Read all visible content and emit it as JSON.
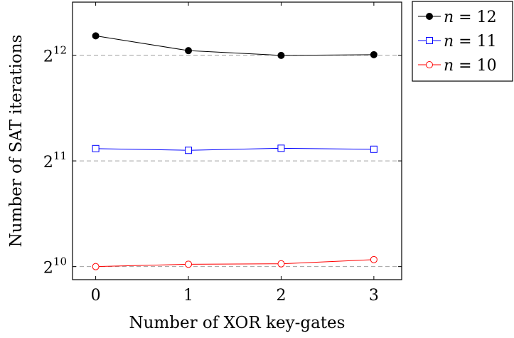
{
  "chart_data": {
    "type": "line",
    "title": "",
    "xlabel": "Number of XOR key-gates",
    "ylabel": "Number of SAT iterations",
    "x": [
      0,
      1,
      2,
      3
    ],
    "xticks": [
      "0",
      "1",
      "2",
      "3"
    ],
    "xlim": [
      -0.25,
      3.3
    ],
    "ylog_base": 2,
    "ylim": [
      940,
      5800
    ],
    "yticks": [
      {
        "value": 1024,
        "base": "2",
        "exp": "10"
      },
      {
        "value": 2048,
        "base": "2",
        "exp": "11"
      },
      {
        "value": 4096,
        "base": "2",
        "exp": "12"
      }
    ],
    "grid": "horizontal dashed at major ticks",
    "legend_position": "outside-right-top",
    "series": [
      {
        "name": "n = 12",
        "var": "n",
        "value_label": "12",
        "color": "#000000",
        "marker": "filled-circle",
        "values": [
          4650,
          4220,
          4090,
          4110
        ]
      },
      {
        "name": "n = 11",
        "var": "n",
        "value_label": "11",
        "color": "#0000ff",
        "marker": "open-square",
        "values": [
          2220,
          2195,
          2225,
          2210
        ]
      },
      {
        "name": "n = 10",
        "var": "n",
        "value_label": "10",
        "color": "#ff0000",
        "marker": "open-circle",
        "values": [
          1024,
          1040,
          1043,
          1072
        ]
      }
    ]
  }
}
